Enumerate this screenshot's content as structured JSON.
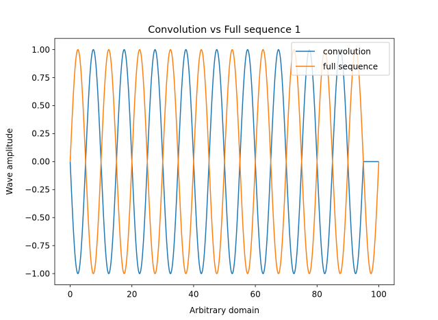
{
  "chart_data": {
    "type": "line",
    "title": "Convolution vs Full sequence 1",
    "xlabel": "Arbitrary domain",
    "ylabel": "Wave amplitude",
    "xlim": [
      -5,
      105
    ],
    "ylim": [
      -1.1,
      1.1
    ],
    "xticks": [
      "0",
      "20",
      "40",
      "60",
      "80",
      "100"
    ],
    "yticks": [
      "−1.00",
      "−0.75",
      "−0.50",
      "−0.25",
      "0.00",
      "0.25",
      "0.50",
      "0.75",
      "1.00"
    ],
    "xtick_values": [
      0,
      20,
      40,
      60,
      80,
      100
    ],
    "ytick_values": [
      -1.0,
      -0.75,
      -0.5,
      -0.25,
      0.0,
      0.25,
      0.5,
      0.75,
      1.0
    ],
    "grid": false,
    "legend_position": "top-right",
    "series": [
      {
        "name": "convolution",
        "color": "#1f77b4",
        "function": "sin",
        "amplitude": 1.0,
        "period": 10,
        "phase_deg": 180,
        "x_start": 0,
        "x_end": 95,
        "then_zero_to": 100
      },
      {
        "name": "full sequence",
        "color": "#ff7f0e",
        "function": "sin",
        "amplitude": 1.0,
        "period": 10,
        "phase_deg": 0,
        "x_start": 0,
        "x_end": 100,
        "end_value": 0.0
      }
    ]
  }
}
